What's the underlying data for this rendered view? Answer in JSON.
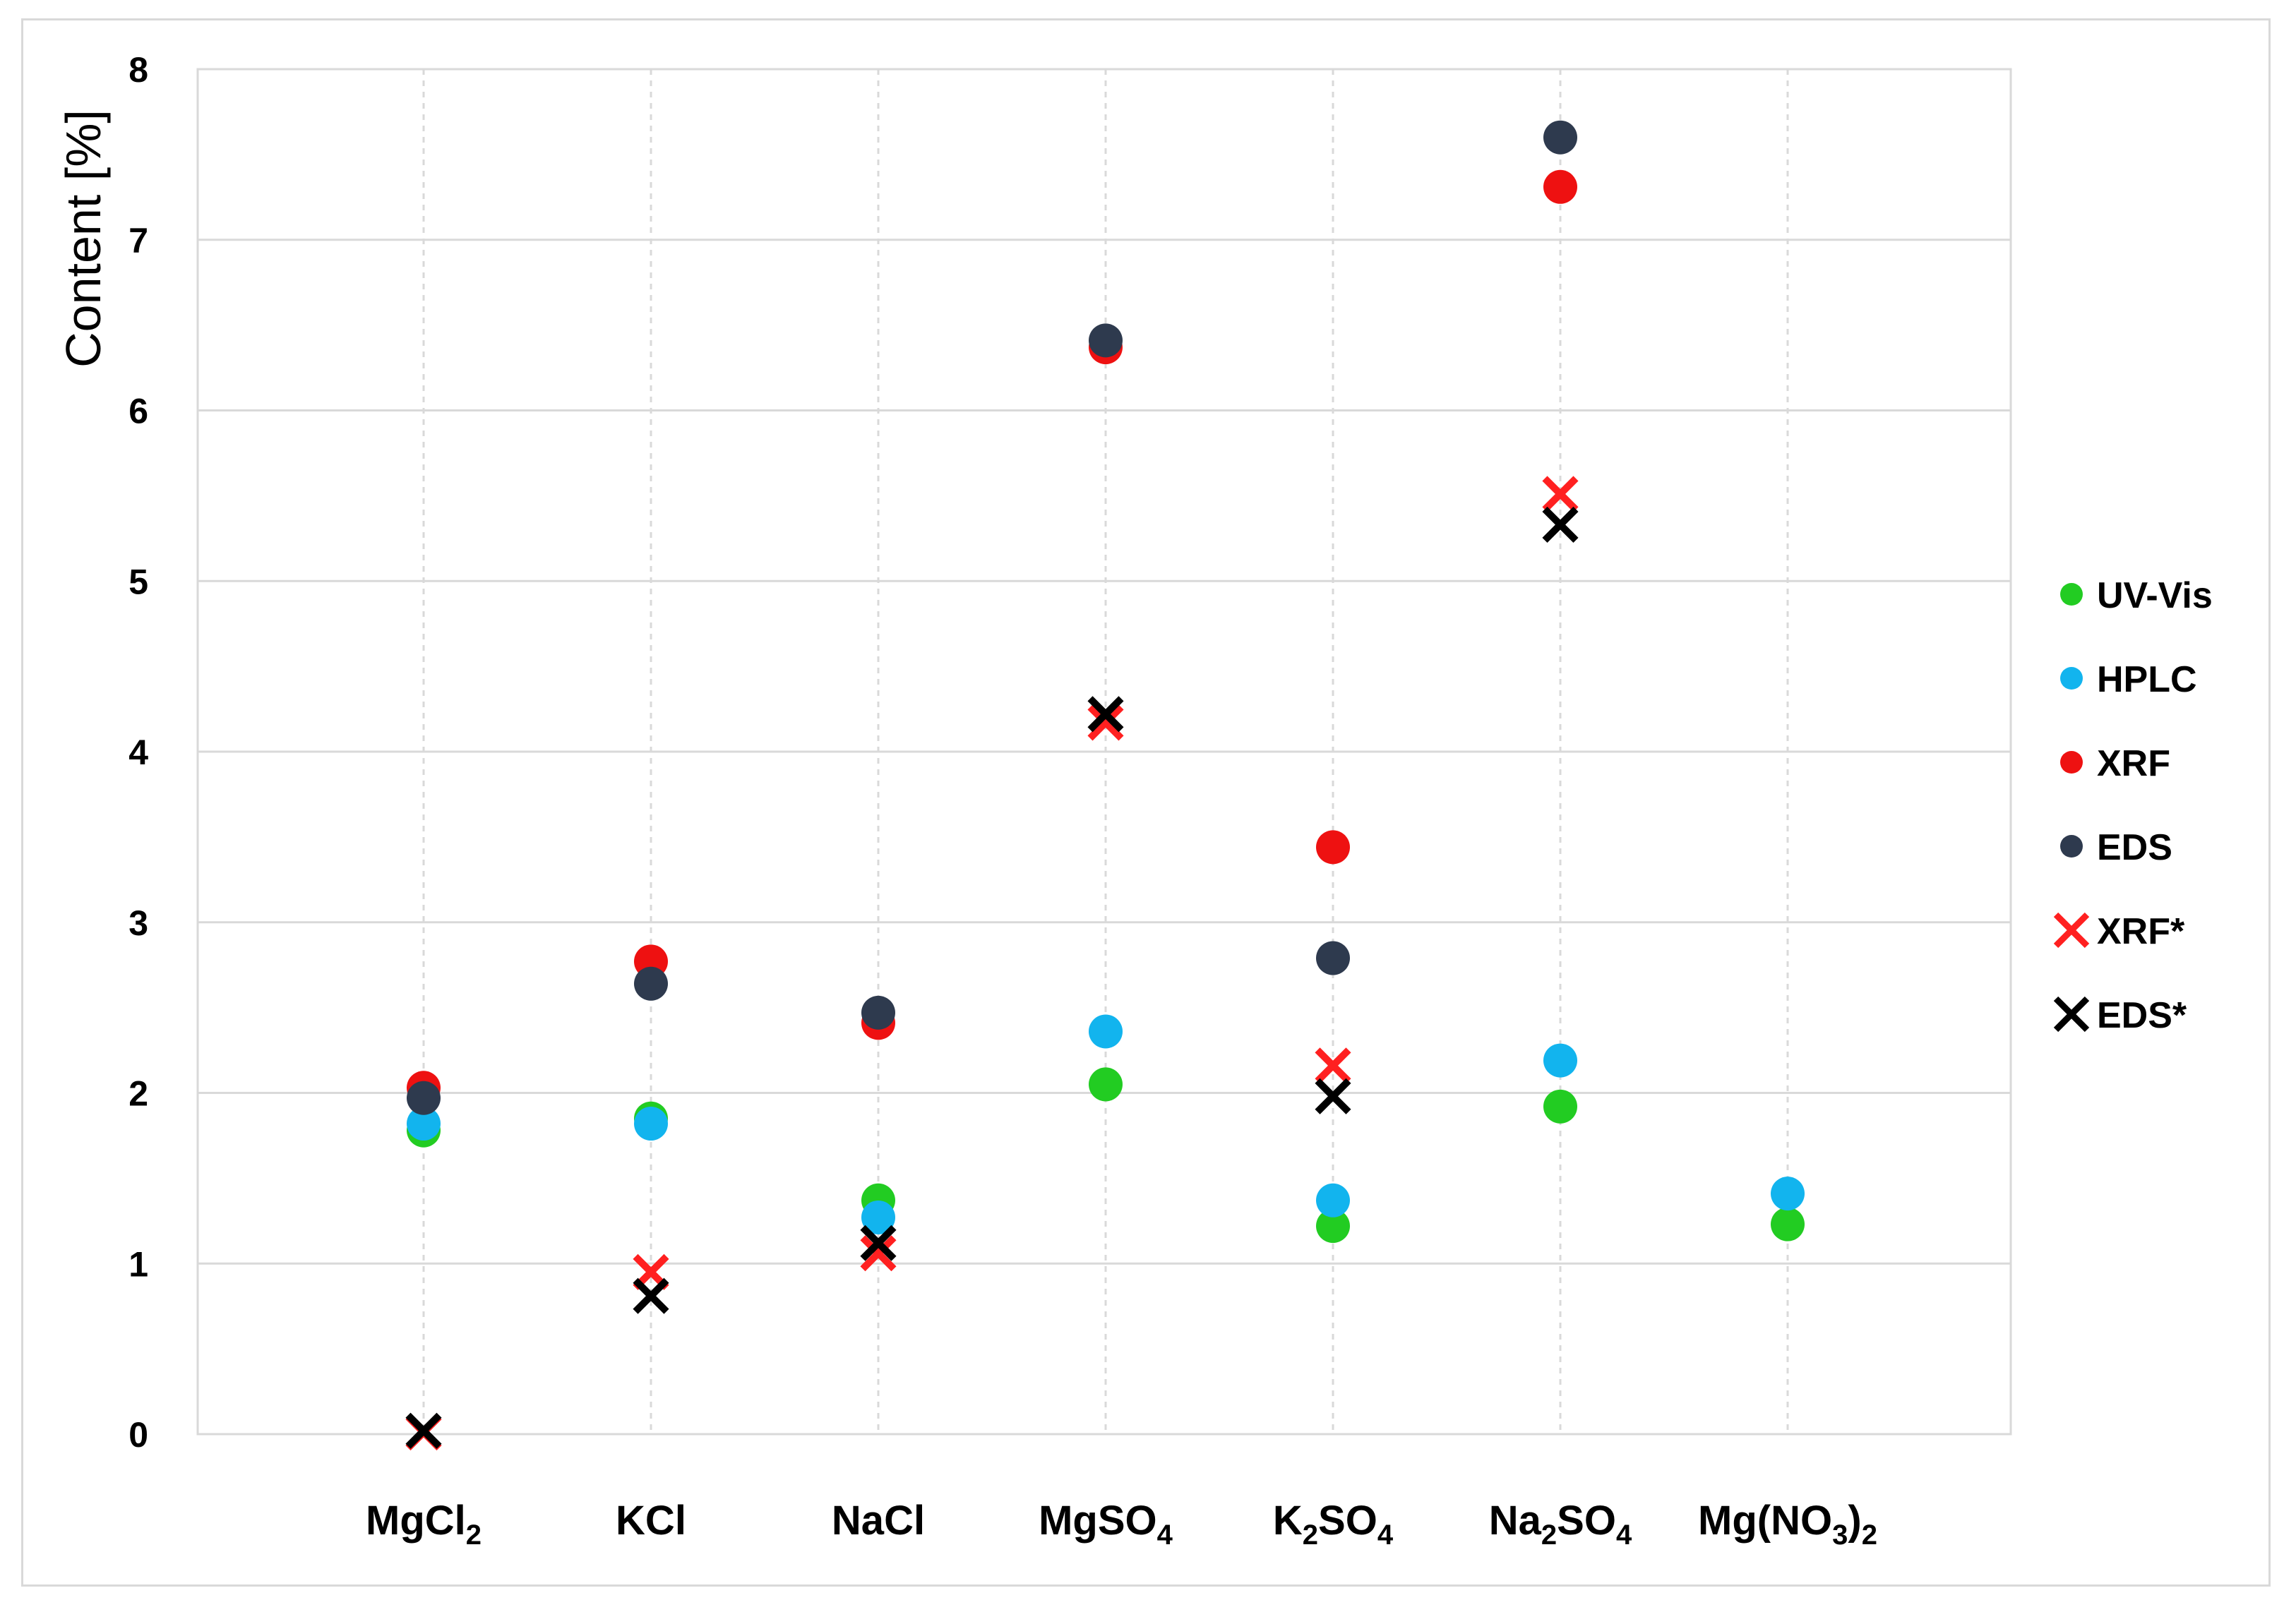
{
  "chart_data": {
    "type": "scatter",
    "title": "",
    "xlabel": "",
    "ylabel": "Content [%]",
    "ylim": [
      0,
      8
    ],
    "yticks": [
      "0",
      "1",
      "2",
      "3",
      "4",
      "5",
      "6",
      "7",
      "8"
    ],
    "grid": true,
    "legend_position": "right",
    "categories": [
      {
        "base": "MgCl",
        "sub": "2",
        "tail": "",
        "sub2": ""
      },
      {
        "base": "KCl",
        "sub": "",
        "tail": "",
        "sub2": ""
      },
      {
        "base": "NaCl",
        "sub": "",
        "tail": "",
        "sub2": ""
      },
      {
        "base": "MgSO",
        "sub": "4",
        "tail": "",
        "sub2": ""
      },
      {
        "base": "K",
        "sub": "2",
        "tail": "SO",
        "sub2": "4"
      },
      {
        "base": "Na",
        "sub": "2",
        "tail": "SO",
        "sub2": "4"
      },
      {
        "base": "Mg(NO",
        "sub": "3",
        "tail": ")",
        "sub2": "2"
      }
    ],
    "series": [
      {
        "name": "UV-Vis",
        "marker": "circle",
        "color": "#22cc22",
        "values": [
          1.78,
          1.85,
          1.37,
          2.05,
          1.22,
          1.92,
          1.23
        ]
      },
      {
        "name": "HPLC",
        "marker": "circle",
        "color": "#12b4ee",
        "values": [
          1.82,
          1.82,
          1.27,
          2.36,
          1.37,
          2.19,
          1.41
        ]
      },
      {
        "name": "XRF",
        "marker": "circle",
        "color": "#ee1111",
        "values": [
          2.03,
          2.77,
          2.41,
          6.37,
          3.44,
          7.31,
          null
        ]
      },
      {
        "name": "EDS",
        "marker": "circle",
        "color": "#2e3a4e",
        "values": [
          1.97,
          2.64,
          2.47,
          6.41,
          2.79,
          7.6,
          null
        ]
      },
      {
        "name": "XRF*",
        "marker": "x",
        "color": "#ff2020",
        "values": [
          0.01,
          0.95,
          1.06,
          4.17,
          2.16,
          5.51,
          null
        ]
      },
      {
        "name": "EDS*",
        "marker": "x",
        "color": "#000000",
        "values": [
          0.02,
          0.81,
          1.12,
          4.22,
          1.98,
          5.33,
          null
        ]
      }
    ]
  }
}
